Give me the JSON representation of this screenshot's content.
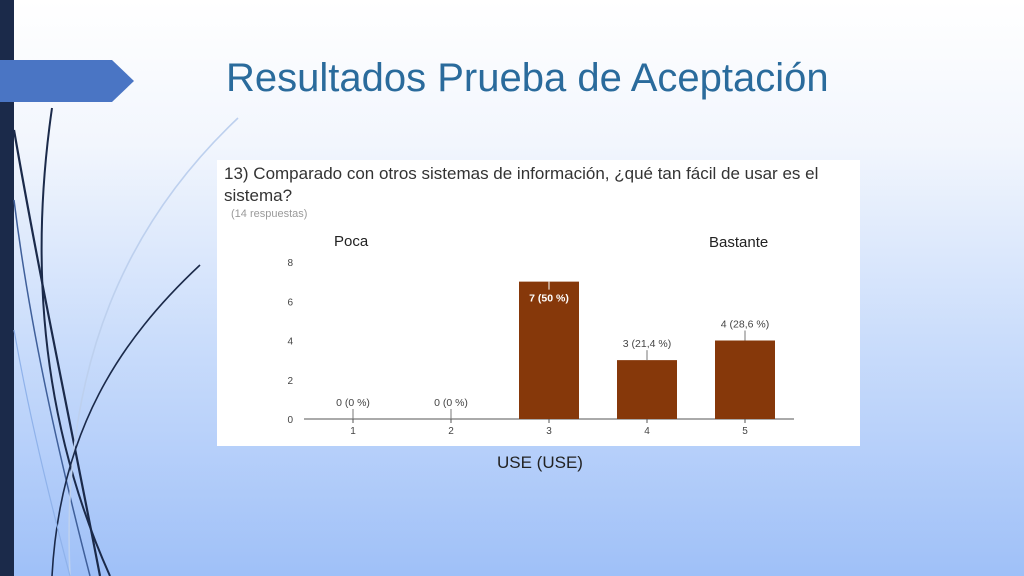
{
  "slide": {
    "title": "Resultados Prueba de Aceptación"
  },
  "chart_panel": {
    "question": "13) Comparado con otros sistemas de información, ¿qué tan fácil de usar es el sistema?",
    "responses": "(14 respuestas)",
    "label_low": "Poca",
    "label_high": "Bastante"
  },
  "axis_caption": "USE (USE)",
  "colors": {
    "bar": "#86380a",
    "title": "#2a6b9c",
    "left_bar": "#1b2a4a",
    "tab": "#4a75c4"
  },
  "chart_data": {
    "type": "bar",
    "categories": [
      "1",
      "2",
      "3",
      "4",
      "5"
    ],
    "values": [
      0,
      0,
      7,
      3,
      4
    ],
    "data_labels": [
      "0 (0 %)",
      "0 (0 %)",
      "7 (50 %)",
      "3 (21,4 %)",
      "4 (28,6 %)"
    ],
    "ylim": [
      0,
      8
    ],
    "yticks": [
      "0",
      "2",
      "4",
      "6",
      "8"
    ],
    "xlabel": "USE (USE)",
    "ylabel": "",
    "grid": false
  }
}
